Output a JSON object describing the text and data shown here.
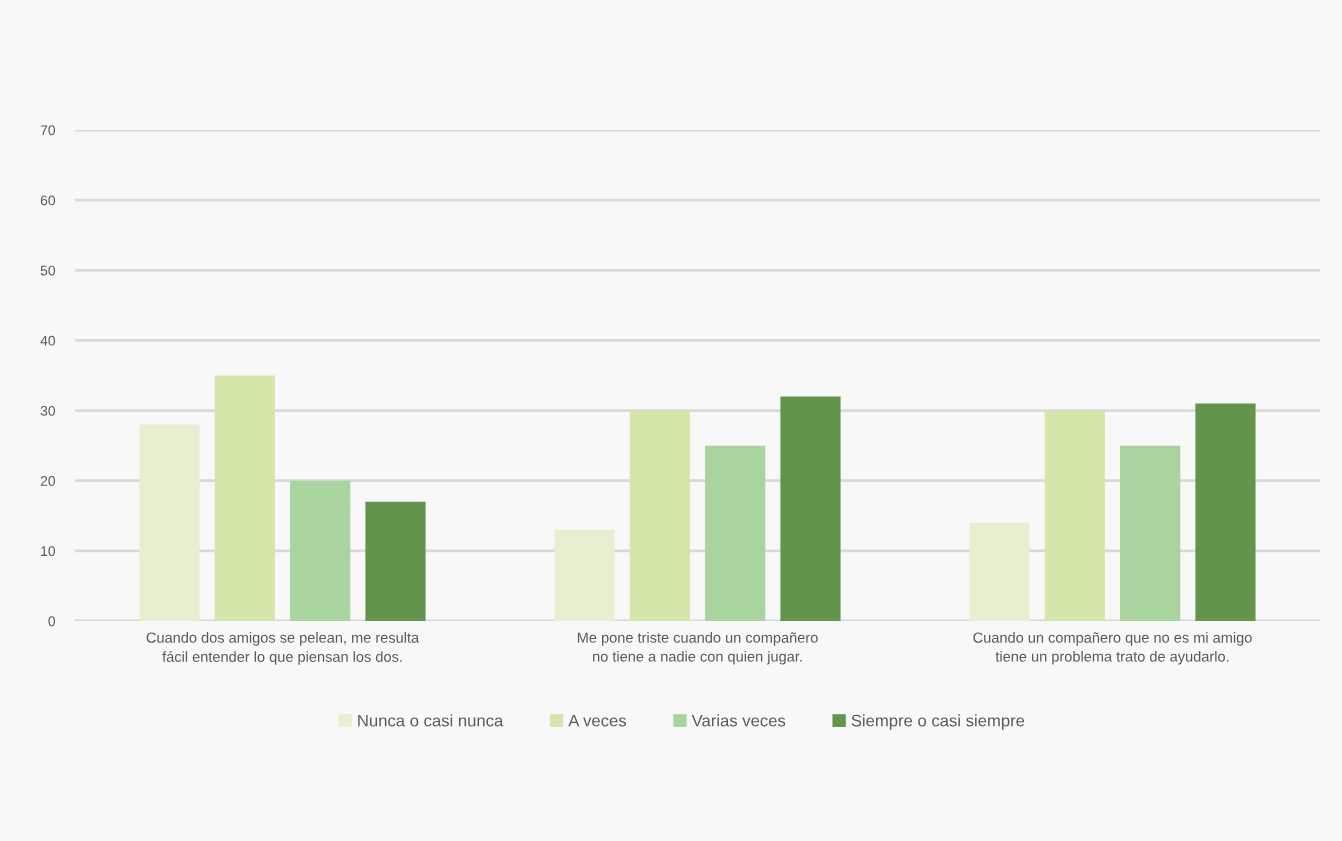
{
  "chart_data": {
    "type": "bar",
    "categories": [
      "Cuando dos amigos se pelean, me resulta\nfácil entender lo que piensan los dos.",
      "Me pone triste cuando un compañero\nno tiene a nadie con quien jugar.",
      "Cuando un compañero que no es mi amigo\ntiene un problema trato de ayudarlo."
    ],
    "series": [
      {
        "name": "Nunca o casi nunca",
        "color": "#e6f0d0",
        "values": [
          28,
          13,
          14
        ]
      },
      {
        "name": "A veces",
        "color": "#d4e6aa",
        "values": [
          35,
          30,
          30
        ]
      },
      {
        "name": "Varias veces",
        "color": "#a9d49e",
        "values": [
          20,
          25,
          25
        ]
      },
      {
        "name": "Siempre o casi siempre",
        "color": "#62944b",
        "values": [
          17,
          32,
          31
        ]
      }
    ],
    "ylim": [
      0,
      70
    ],
    "yticks": [
      0,
      10,
      20,
      30,
      40,
      50,
      60,
      70
    ],
    "grid": "y",
    "legend": "bottom"
  }
}
